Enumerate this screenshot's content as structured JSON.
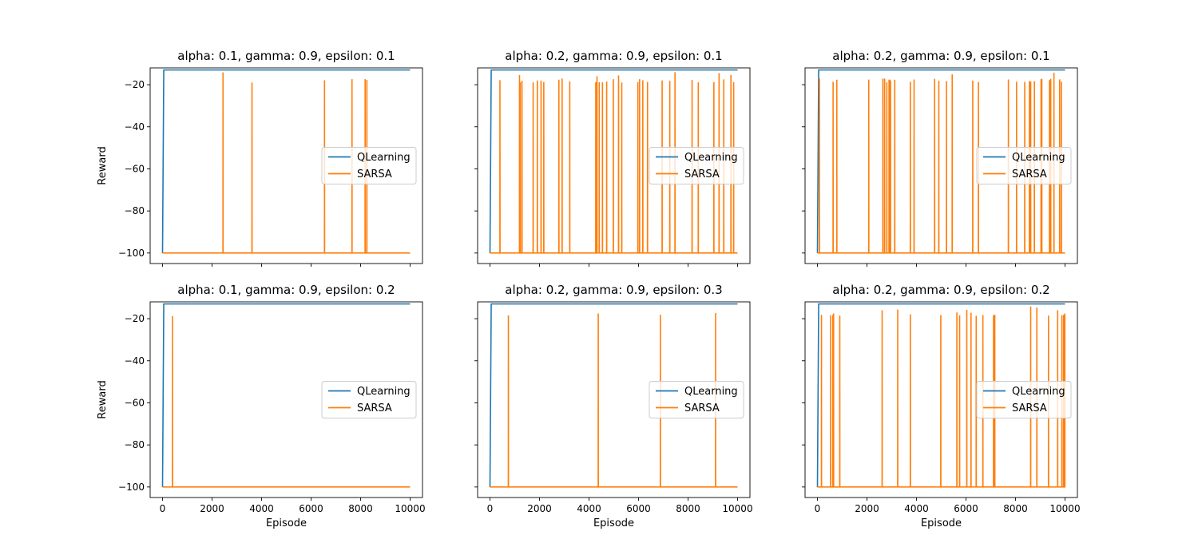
{
  "chart_data": [
    {
      "type": "line",
      "title": "alpha: 0.1, gamma: 0.9, epsilon: 0.1",
      "xlabel": "",
      "ylabel": "Reward",
      "xlim": [
        -500,
        10500
      ],
      "ylim": [
        -105,
        -12
      ],
      "xticks": [
        "0",
        "2000",
        "4000",
        "6000",
        "8000",
        "10000"
      ],
      "xtick_labels_visible": false,
      "yticks": [
        "−20",
        "−40",
        "−60",
        "−80",
        "−100"
      ],
      "ytick_labels_visible": true,
      "legend": {
        "position": "center-right"
      },
      "series": [
        {
          "name": "QLearning",
          "color": "#1f77b4",
          "values": [
            [
              0,
              -100
            ],
            [
              50,
              -13
            ],
            [
              10000,
              -13
            ]
          ]
        },
        {
          "name": "SARSA",
          "color": "#ff7f0e",
          "baseline": -100,
          "spike_level": -17,
          "density": 0.012,
          "seed": 11
        }
      ]
    },
    {
      "type": "line",
      "title": "alpha: 0.2, gamma: 0.9, epsilon: 0.1",
      "xlabel": "",
      "ylabel": "",
      "xlim": [
        -500,
        10500
      ],
      "ylim": [
        -105,
        -12
      ],
      "xticks": [
        "0",
        "2000",
        "4000",
        "6000",
        "8000",
        "10000"
      ],
      "xtick_labels_visible": false,
      "yticks": [
        "−20",
        "−40",
        "−60",
        "−80",
        "−100"
      ],
      "ytick_labels_visible": false,
      "legend": {
        "position": "center-right"
      },
      "series": [
        {
          "name": "QLearning",
          "color": "#1f77b4",
          "values": [
            [
              0,
              -100
            ],
            [
              50,
              -13
            ],
            [
              10000,
              -13
            ]
          ]
        },
        {
          "name": "SARSA",
          "color": "#ff7f0e",
          "baseline": -100,
          "spike_level": -17,
          "density": 0.05,
          "seed": 23
        }
      ]
    },
    {
      "type": "line",
      "title": "alpha: 0.2, gamma: 0.9, epsilon: 0.1",
      "xlabel": "",
      "ylabel": "",
      "xlim": [
        -500,
        10500
      ],
      "ylim": [
        -105,
        -12
      ],
      "xticks": [
        "0",
        "2000",
        "4000",
        "6000",
        "8000",
        "10000"
      ],
      "xtick_labels_visible": false,
      "yticks": [
        "−20",
        "−40",
        "−60",
        "−80",
        "−100"
      ],
      "ytick_labels_visible": false,
      "legend": {
        "position": "center-right"
      },
      "series": [
        {
          "name": "QLearning",
          "color": "#1f77b4",
          "values": [
            [
              0,
              -100
            ],
            [
              50,
              -13
            ],
            [
              10000,
              -13
            ]
          ]
        },
        {
          "name": "SARSA",
          "color": "#ff7f0e",
          "baseline": -100,
          "spike_level": -17,
          "density": 0.06,
          "seed": 37
        }
      ]
    },
    {
      "type": "line",
      "title": "alpha: 0.1, gamma: 0.9, epsilon: 0.2",
      "xlabel": "Episode",
      "ylabel": "Reward",
      "xlim": [
        -500,
        10500
      ],
      "ylim": [
        -105,
        -12
      ],
      "xticks": [
        "0",
        "2000",
        "4000",
        "6000",
        "8000",
        "10000"
      ],
      "xtick_labels_visible": true,
      "yticks": [
        "−20",
        "−40",
        "−60",
        "−80",
        "−100"
      ],
      "ytick_labels_visible": true,
      "legend": {
        "position": "center-right"
      },
      "series": [
        {
          "name": "QLearning",
          "color": "#1f77b4",
          "values": [
            [
              0,
              -100
            ],
            [
              50,
              -13
            ],
            [
              10000,
              -13
            ]
          ]
        },
        {
          "name": "SARSA",
          "color": "#ff7f0e",
          "baseline": -100,
          "spike_level": -17,
          "density": 0.006,
          "seed": 41
        }
      ]
    },
    {
      "type": "line",
      "title": "alpha: 0.2, gamma: 0.9, epsilon: 0.3",
      "xlabel": "Episode",
      "ylabel": "",
      "xlim": [
        -500,
        10500
      ],
      "ylim": [
        -105,
        -12
      ],
      "xticks": [
        "0",
        "2000",
        "4000",
        "6000",
        "8000",
        "10000"
      ],
      "xtick_labels_visible": true,
      "yticks": [
        "−20",
        "−40",
        "−60",
        "−80",
        "−100"
      ],
      "ytick_labels_visible": false,
      "legend": {
        "position": "center-right"
      },
      "series": [
        {
          "name": "QLearning",
          "color": "#1f77b4",
          "values": [
            [
              0,
              -100
            ],
            [
              50,
              -13
            ],
            [
              10000,
              -13
            ]
          ]
        },
        {
          "name": "SARSA",
          "color": "#ff7f0e",
          "baseline": -100,
          "spike_level": -17,
          "density": 0.012,
          "seed": 53
        }
      ]
    },
    {
      "type": "line",
      "title": "alpha: 0.2, gamma: 0.9, epsilon: 0.2",
      "xlabel": "Episode",
      "ylabel": "",
      "xlim": [
        -500,
        10500
      ],
      "ylim": [
        -105,
        -12
      ],
      "xticks": [
        "0",
        "2000",
        "4000",
        "6000",
        "8000",
        "10000"
      ],
      "xtick_labels_visible": true,
      "yticks": [
        "−20",
        "−40",
        "−60",
        "−80",
        "−100"
      ],
      "ytick_labels_visible": false,
      "legend": {
        "position": "center-right"
      },
      "series": [
        {
          "name": "QLearning",
          "color": "#1f77b4",
          "values": [
            [
              0,
              -100
            ],
            [
              50,
              -13
            ],
            [
              10000,
              -13
            ]
          ]
        },
        {
          "name": "SARSA",
          "color": "#ff7f0e",
          "baseline": -100,
          "spike_level": -17,
          "density": 0.03,
          "seed": 67
        }
      ]
    }
  ]
}
